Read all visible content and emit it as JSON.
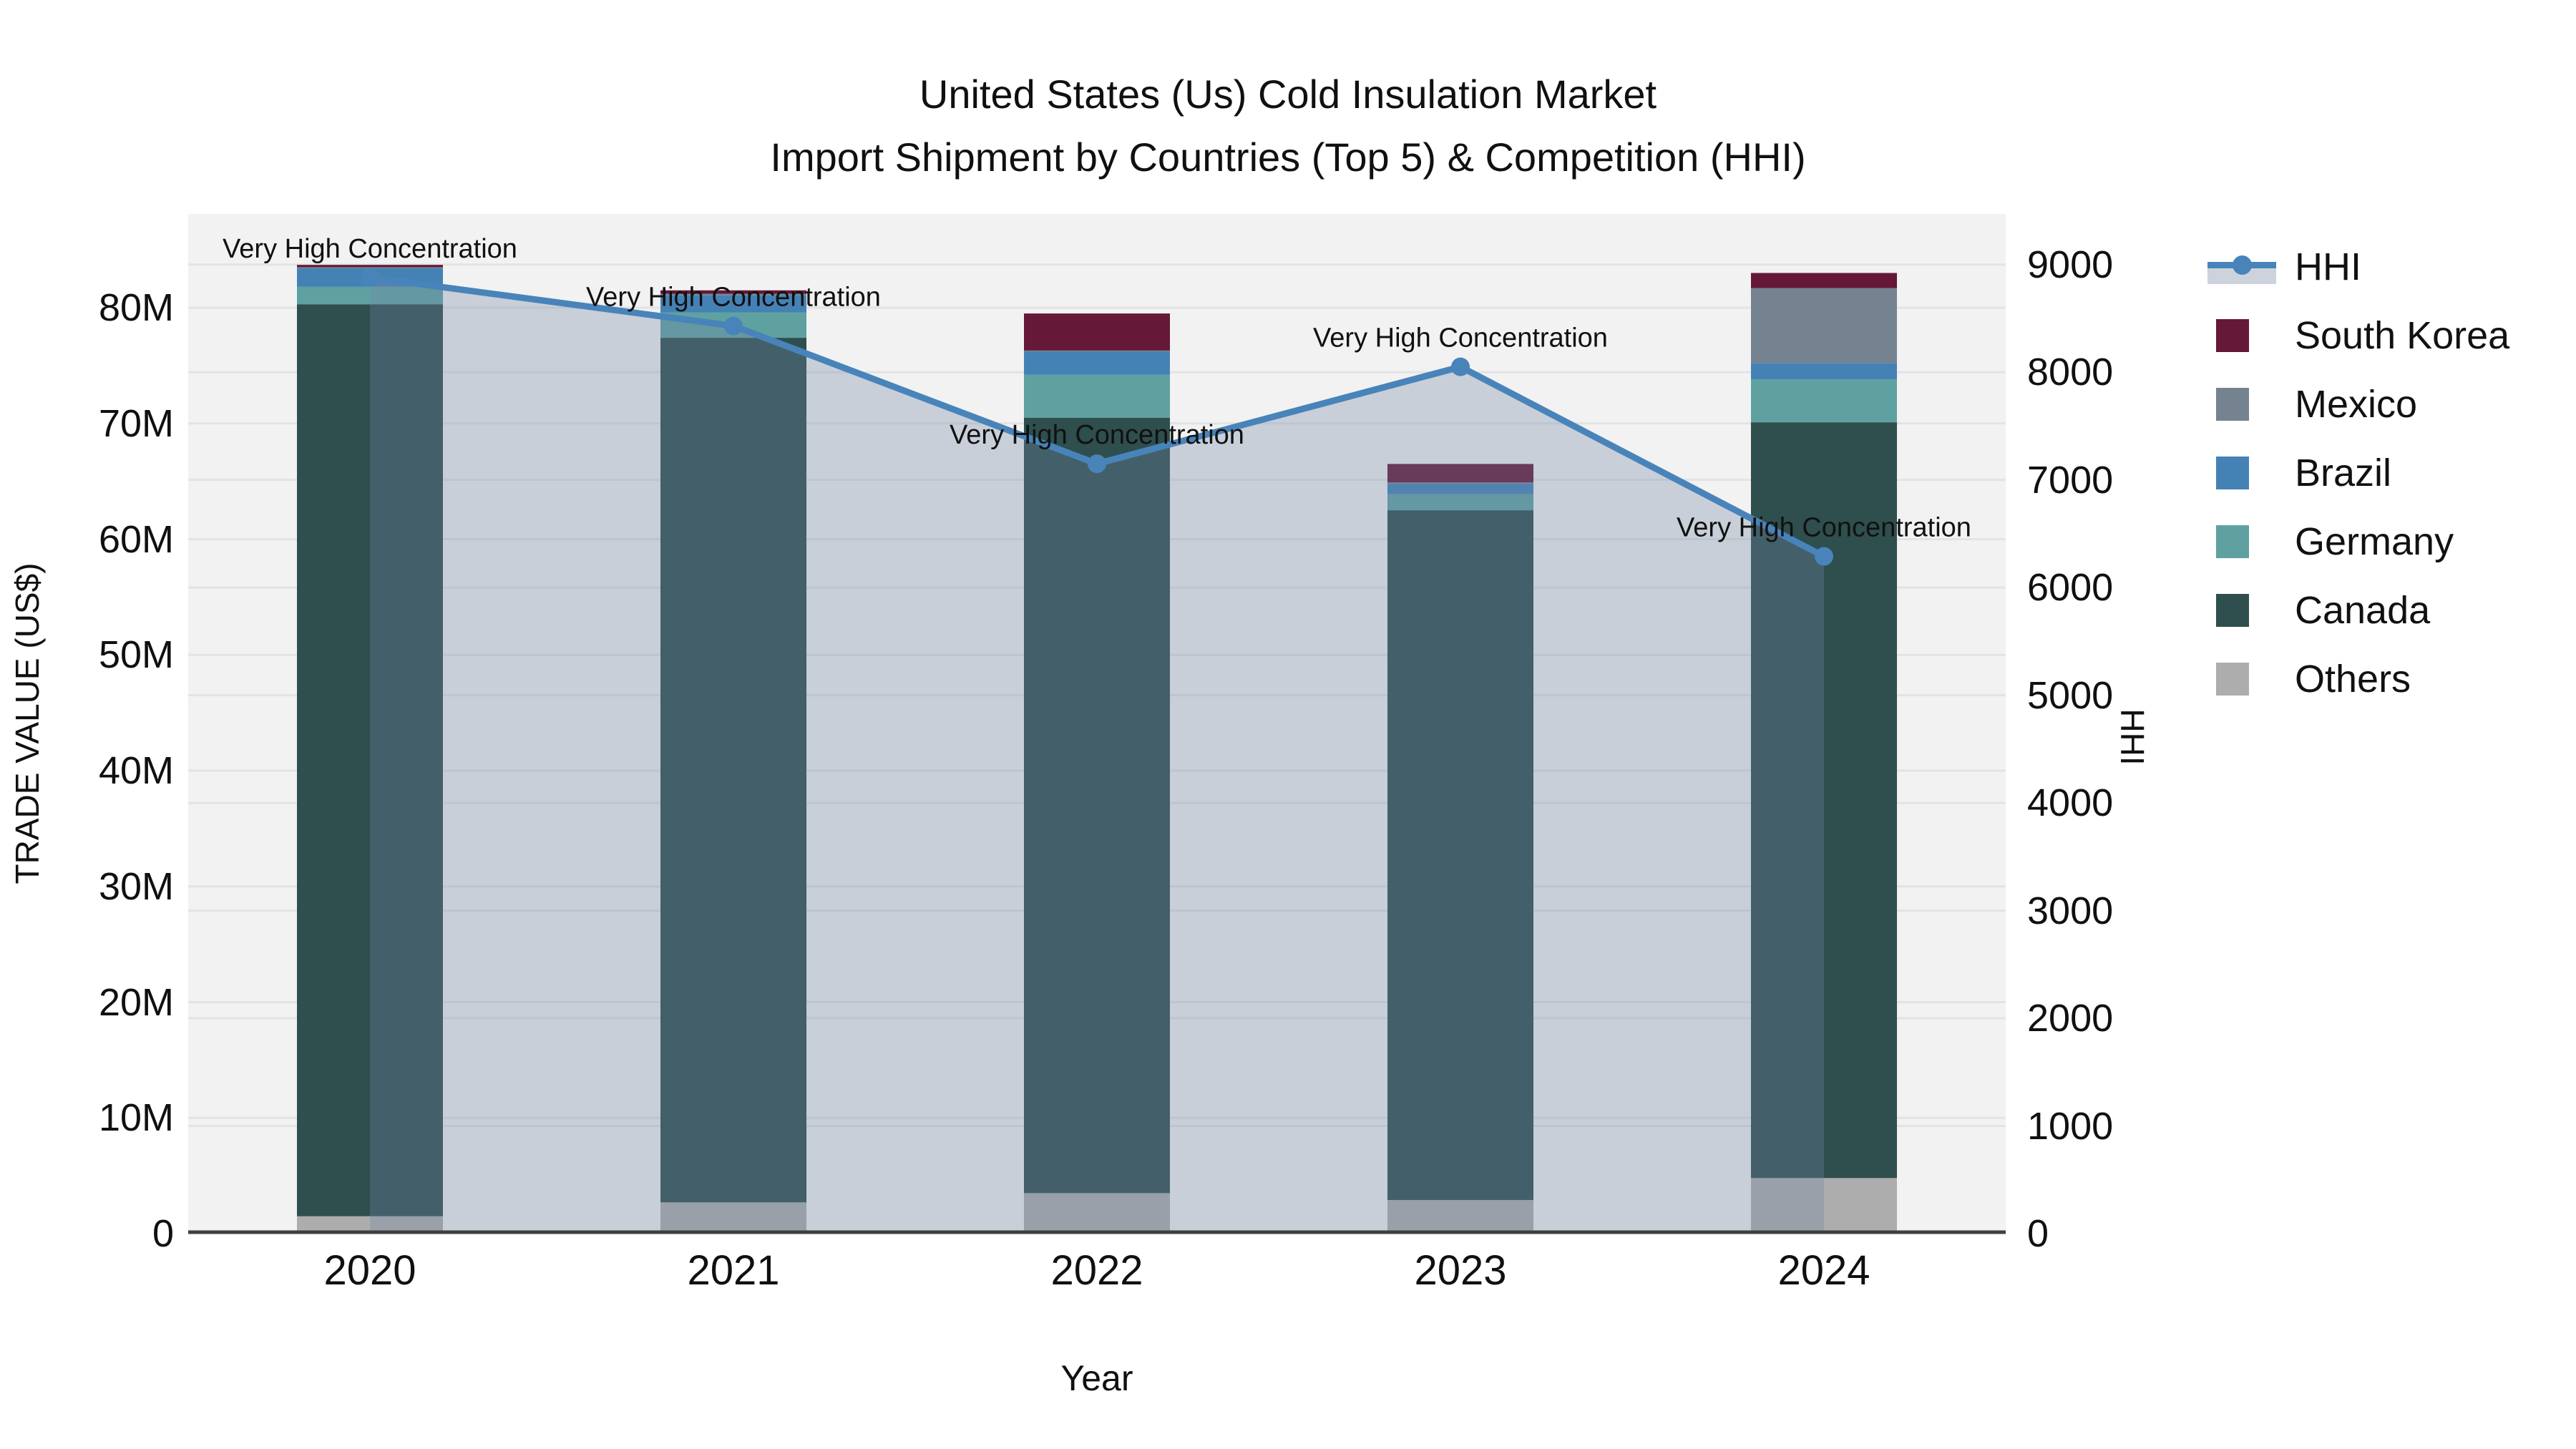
{
  "title": {
    "line1": "United States (Us) Cold Insulation Market",
    "line2": "Import Shipment by Countries (Top 5) & Competition (HHI)"
  },
  "colors": {
    "plot_background": "#f2f2f2",
    "gridline": "#e3e3e3",
    "axis_line": "#3f3f3f",
    "hhi_line": "#4884ba",
    "hhi_area": "rgba(113,134,165,0.32)",
    "legend_band": "#cdd3dc",
    "annotation_text": "#111111"
  },
  "legend": {
    "items": [
      {
        "label": "HHI",
        "type": "line",
        "color": "#4884ba"
      },
      {
        "label": "South Korea",
        "type": "square",
        "color": "#651837"
      },
      {
        "label": "Mexico",
        "type": "square",
        "color": "#75828f"
      },
      {
        "label": "Brazil",
        "type": "square",
        "color": "#4482b6"
      },
      {
        "label": "Germany",
        "type": "square",
        "color": "#5fa1a1"
      },
      {
        "label": "Canada",
        "type": "square",
        "color": "#2f4e4e"
      },
      {
        "label": "Others",
        "type": "square",
        "color": "#adadad"
      }
    ]
  },
  "chart_data": {
    "type": "bar",
    "subtype": "stacked-bar-with-line",
    "categories": [
      "2020",
      "2021",
      "2022",
      "2023",
      "2024"
    ],
    "bar_unit": "M US$",
    "series": [
      {
        "name": "Others",
        "color": "#adadad",
        "values": [
          1.5,
          2.7,
          3.5,
          2.9,
          4.8
        ]
      },
      {
        "name": "Canada",
        "color": "#2f4e4e",
        "values": [
          78.8,
          74.7,
          67.0,
          59.6,
          65.3
        ]
      },
      {
        "name": "Germany",
        "color": "#5fa1a1",
        "values": [
          1.5,
          2.2,
          3.7,
          1.4,
          3.7
        ]
      },
      {
        "name": "Brazil",
        "color": "#4482b6",
        "values": [
          1.6,
          1.5,
          2.0,
          0.9,
          1.4
        ]
      },
      {
        "name": "Mexico",
        "color": "#75828f",
        "values": [
          0.1,
          0.1,
          0.1,
          0.1,
          6.5
        ]
      },
      {
        "name": "South Korea",
        "color": "#651837",
        "values": [
          0.2,
          0.3,
          3.2,
          1.6,
          1.3
        ]
      }
    ],
    "line_series": {
      "name": "HHI",
      "color": "#4884ba",
      "area_color": "rgba(113,134,165,0.32)",
      "values": [
        8880,
        8430,
        7150,
        8050,
        6290
      ]
    },
    "annotations": [
      {
        "category": "2020",
        "text": "Very High Concentration"
      },
      {
        "category": "2021",
        "text": "Very High Concentration"
      },
      {
        "category": "2022",
        "text": "Very High Concentration"
      },
      {
        "category": "2023",
        "text": "Very High Concentration"
      },
      {
        "category": "2024",
        "text": "Very High Concentration"
      }
    ],
    "axes": {
      "left": {
        "title": "TRADE VALUE (US$)",
        "max": 88.1,
        "ticks": [
          {
            "v": 0,
            "label": "0"
          },
          {
            "v": 10,
            "label": "10M"
          },
          {
            "v": 20,
            "label": "20M"
          },
          {
            "v": 30,
            "label": "30M"
          },
          {
            "v": 40,
            "label": "40M"
          },
          {
            "v": 50,
            "label": "50M"
          },
          {
            "v": 60,
            "label": "60M"
          },
          {
            "v": 70,
            "label": "70M"
          },
          {
            "v": 80,
            "label": "80M"
          }
        ]
      },
      "right": {
        "title": "HHI",
        "max": 9470,
        "ticks": [
          {
            "v": 0,
            "label": "0"
          },
          {
            "v": 1000,
            "label": "1000"
          },
          {
            "v": 2000,
            "label": "2000"
          },
          {
            "v": 3000,
            "label": "3000"
          },
          {
            "v": 4000,
            "label": "4000"
          },
          {
            "v": 5000,
            "label": "5000"
          },
          {
            "v": 6000,
            "label": "6000"
          },
          {
            "v": 7000,
            "label": "7000"
          },
          {
            "v": 8000,
            "label": "8000"
          },
          {
            "v": 9000,
            "label": "9000"
          }
        ]
      },
      "x": {
        "title": "Year"
      }
    },
    "legend_position": "right",
    "grid": true
  }
}
